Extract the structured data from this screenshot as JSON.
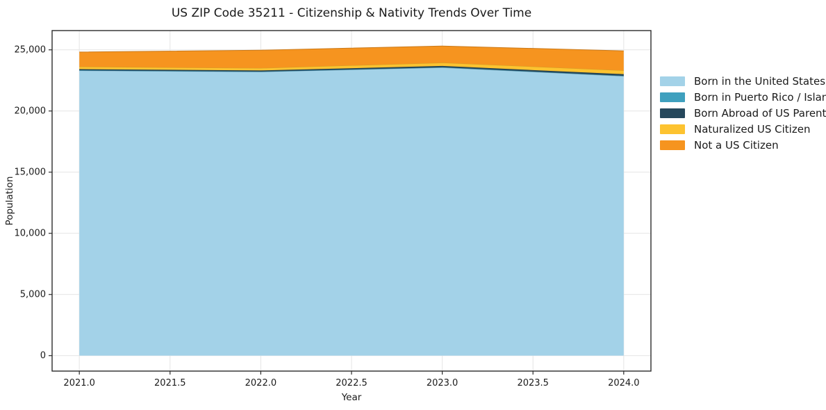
{
  "chart_data": {
    "type": "area",
    "stacked": true,
    "title": "US ZIP Code 35211 - Citizenship & Nativity Trends Over Time",
    "xlabel": "Year",
    "ylabel": "Population",
    "x": [
      2021,
      2022,
      2023,
      2024
    ],
    "series": [
      {
        "name": "Born in the United States",
        "color": "#a3d2e8",
        "values": [
          23300,
          23200,
          23550,
          22850
        ]
      },
      {
        "name": "Born in Puerto Rico / Islands",
        "color": "#3fa0be",
        "values": [
          30,
          25,
          25,
          25
        ]
      },
      {
        "name": "Born Abroad of US Parent(s)",
        "color": "#26485c",
        "values": [
          90,
          90,
          110,
          140
        ]
      },
      {
        "name": "Naturalized US Citizen",
        "color": "#fdc330",
        "values": [
          200,
          190,
          260,
          300
        ]
      },
      {
        "name": "Not a US Citizen",
        "color": "#f6941f",
        "values": [
          1200,
          1470,
          1370,
          1600
        ]
      }
    ],
    "totals": [
      24820,
      24975,
      25315,
      24915
    ],
    "xlim": [
      2020.85,
      2024.15
    ],
    "ylim": [
      -1265,
      26575
    ],
    "xticks": {
      "values": [
        2021.0,
        2021.5,
        2022.0,
        2022.5,
        2023.0,
        2023.5,
        2024.0
      ],
      "labels": [
        "2021.0",
        "2021.5",
        "2022.0",
        "2022.5",
        "2023.0",
        "2023.5",
        "2024.0"
      ]
    },
    "yticks": {
      "values": [
        0,
        5000,
        10000,
        15000,
        20000,
        25000
      ],
      "labels": [
        "0",
        "5,000",
        "10,000",
        "15,000",
        "20,000",
        "25,000"
      ]
    },
    "grid": true,
    "legend_position": "outside-right",
    "colors": {
      "background": "#ffffff",
      "grid": "#e7e7e7",
      "spine": "#2a2a2a",
      "text": "#1a1a1a"
    }
  }
}
